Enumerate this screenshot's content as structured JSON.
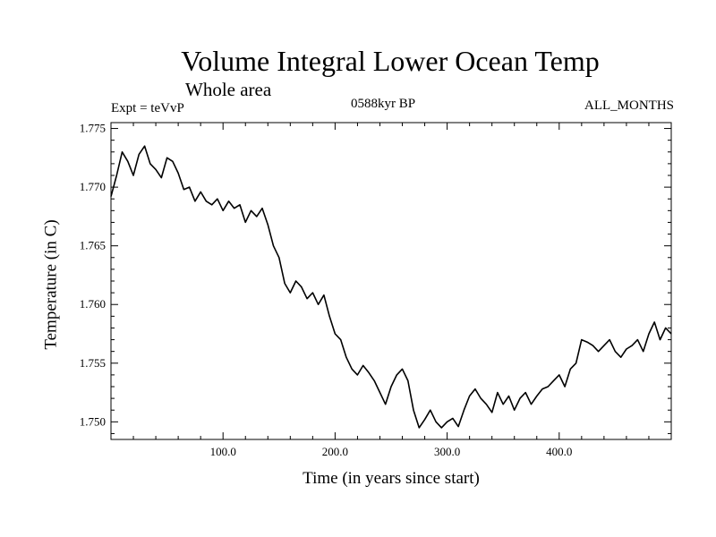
{
  "chart_data": {
    "type": "line",
    "title": "Volume Integral Lower Ocean Temp",
    "subtitle": "Whole area",
    "top_left": "Expt = teVvP",
    "top_center": "0588kyr BP",
    "top_right": "ALL_MONTHS",
    "xlabel": "Time (in years since start)",
    "ylabel": "Temperature (in C)",
    "xlim": [
      0,
      500
    ],
    "ylim": [
      1.7485,
      1.7755
    ],
    "xticks": [
      100.0,
      200.0,
      300.0,
      400.0
    ],
    "xtick_labels": [
      "100.0",
      "200.0",
      "300.0",
      "400.0"
    ],
    "yticks": [
      1.75,
      1.755,
      1.76,
      1.765,
      1.77,
      1.775
    ],
    "ytick_labels": [
      "1.750",
      "1.755",
      "1.760",
      "1.765",
      "1.770",
      "1.775"
    ],
    "grid": false,
    "series": [
      {
        "color": "#000000",
        "x": [
          0,
          5,
          10,
          15,
          20,
          25,
          30,
          35,
          40,
          45,
          50,
          55,
          60,
          65,
          70,
          75,
          80,
          85,
          90,
          95,
          100,
          105,
          110,
          115,
          120,
          125,
          130,
          135,
          140,
          145,
          150,
          155,
          160,
          165,
          170,
          175,
          180,
          185,
          190,
          195,
          200,
          205,
          210,
          215,
          220,
          225,
          230,
          235,
          240,
          245,
          250,
          255,
          260,
          265,
          270,
          275,
          280,
          285,
          290,
          295,
          300,
          305,
          310,
          315,
          320,
          325,
          330,
          335,
          340,
          345,
          350,
          355,
          360,
          365,
          370,
          375,
          380,
          385,
          390,
          395,
          400,
          405,
          410,
          415,
          420,
          425,
          430,
          435,
          440,
          445,
          450,
          455,
          460,
          465,
          470,
          475,
          480,
          485,
          490,
          495,
          500
        ],
        "values": [
          1.7692,
          1.771,
          1.773,
          1.7722,
          1.771,
          1.7728,
          1.7735,
          1.772,
          1.7715,
          1.7708,
          1.7725,
          1.7722,
          1.7712,
          1.7698,
          1.77,
          1.7688,
          1.7696,
          1.7688,
          1.7685,
          1.769,
          1.768,
          1.7688,
          1.7682,
          1.7685,
          1.767,
          1.768,
          1.7675,
          1.7682,
          1.7668,
          1.765,
          1.764,
          1.7618,
          1.761,
          1.762,
          1.7615,
          1.7605,
          1.761,
          1.76,
          1.7608,
          1.759,
          1.7575,
          1.757,
          1.7555,
          1.7545,
          1.754,
          1.7548,
          1.7542,
          1.7535,
          1.7525,
          1.7515,
          1.753,
          1.754,
          1.7545,
          1.7535,
          1.751,
          1.7495,
          1.7502,
          1.751,
          1.75,
          1.7495,
          1.75,
          1.7503,
          1.7496,
          1.751,
          1.7522,
          1.7528,
          1.752,
          1.7515,
          1.7508,
          1.7525,
          1.7515,
          1.7522,
          1.751,
          1.752,
          1.7525,
          1.7515,
          1.7522,
          1.7528,
          1.753,
          1.7535,
          1.754,
          1.753,
          1.7545,
          1.755,
          1.757,
          1.7568,
          1.7565,
          1.756,
          1.7565,
          1.757,
          1.756,
          1.7555,
          1.7562,
          1.7565,
          1.757,
          1.756,
          1.7575,
          1.7585,
          1.757,
          1.758,
          1.7575
        ]
      }
    ]
  }
}
